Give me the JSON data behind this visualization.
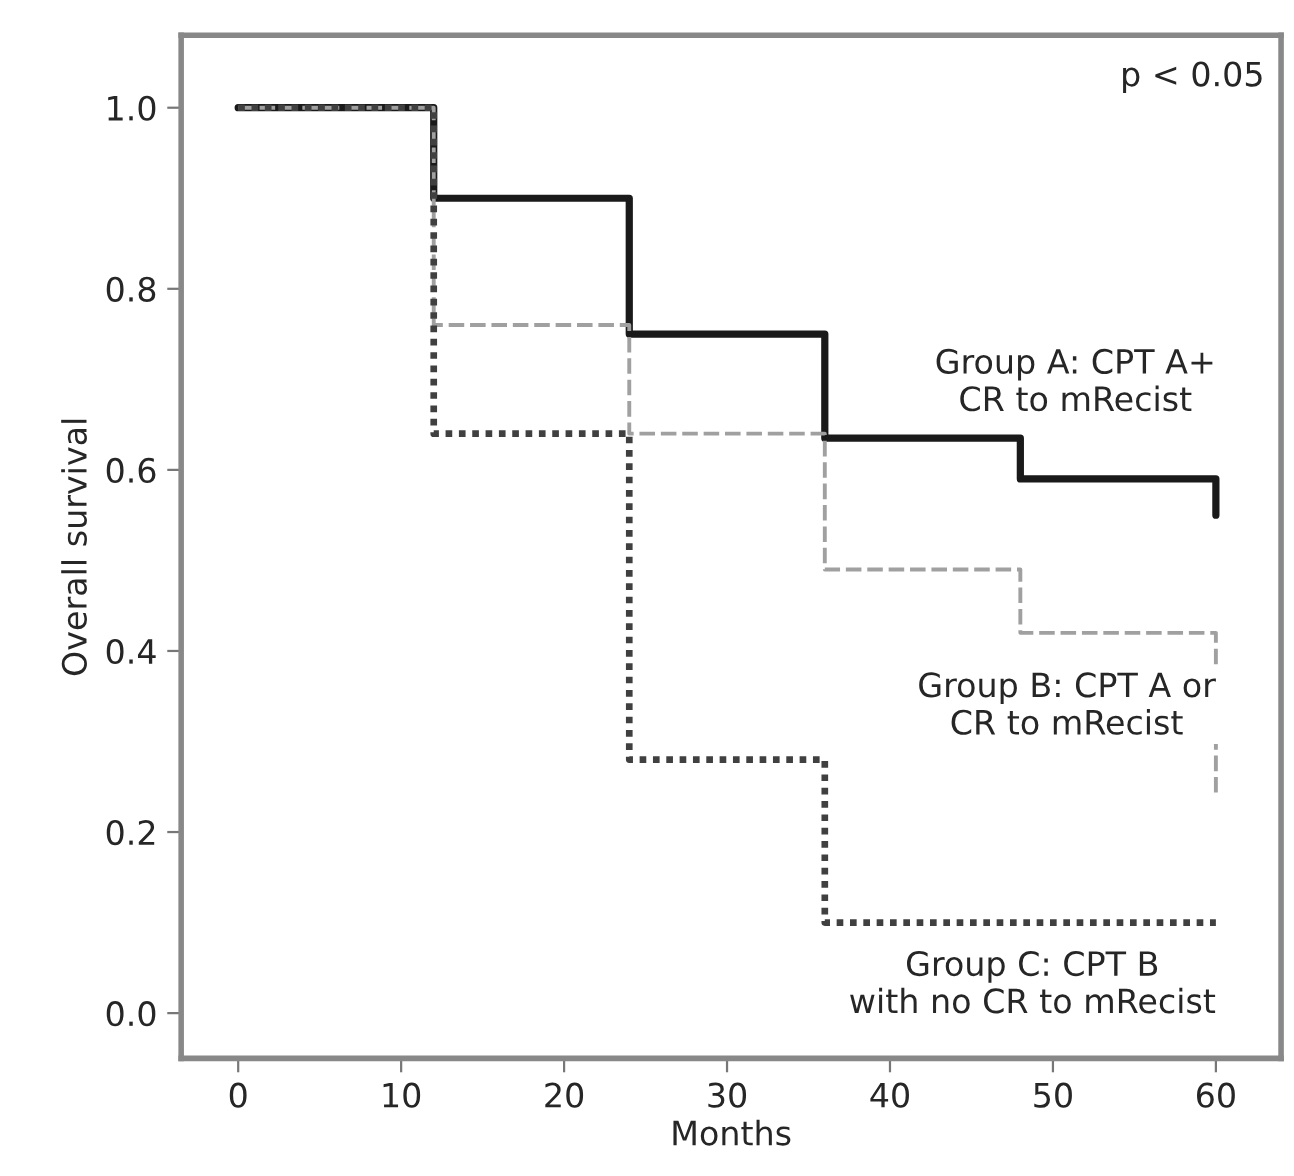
{
  "chart_data": {
    "type": "step",
    "xlabel": "Months",
    "ylabel": "Overall survival",
    "annotations": [
      "p < 0.05"
    ],
    "xlim": [
      -3.5,
      64
    ],
    "xticks": [
      0,
      10,
      20,
      30,
      40,
      50,
      60
    ],
    "ylim": [
      -0.05,
      1.08
    ],
    "yticks": [
      {
        "value": 0,
        "label": "0.0"
      },
      0.2,
      0.4,
      0.6,
      0.8,
      {
        "value": 1,
        "label": "1.0"
      }
    ],
    "grid": false,
    "legend": false,
    "marker": "none",
    "series": [
      {
        "name": "Group A: CPT A+\nCR to mRecist",
        "color": "#1a1a1a",
        "line_style": "solid",
        "x": [
          0,
          12,
          24,
          36,
          48,
          60,
          60
        ],
        "values": [
          1.0,
          0.9,
          0.75,
          0.635,
          0.59,
          0.59,
          0.55
        ]
      },
      {
        "name": "Group B: CPT A or\nCR to mRecist",
        "color": "#a0a0a0",
        "line_style": "dashed",
        "x": [
          0,
          12,
          24,
          36,
          48,
          60,
          60
        ],
        "values": [
          1.0,
          0.76,
          0.64,
          0.49,
          0.42,
          0.42,
          0.24
        ]
      },
      {
        "name": "Group C: CPT B\nwith no CR to mRecist",
        "color": "#404040",
        "line_style": "dotted",
        "x": [
          0,
          12,
          24,
          36,
          60
        ],
        "values": [
          1.0,
          0.64,
          0.28,
          0.1,
          0.1
        ]
      }
    ]
  }
}
